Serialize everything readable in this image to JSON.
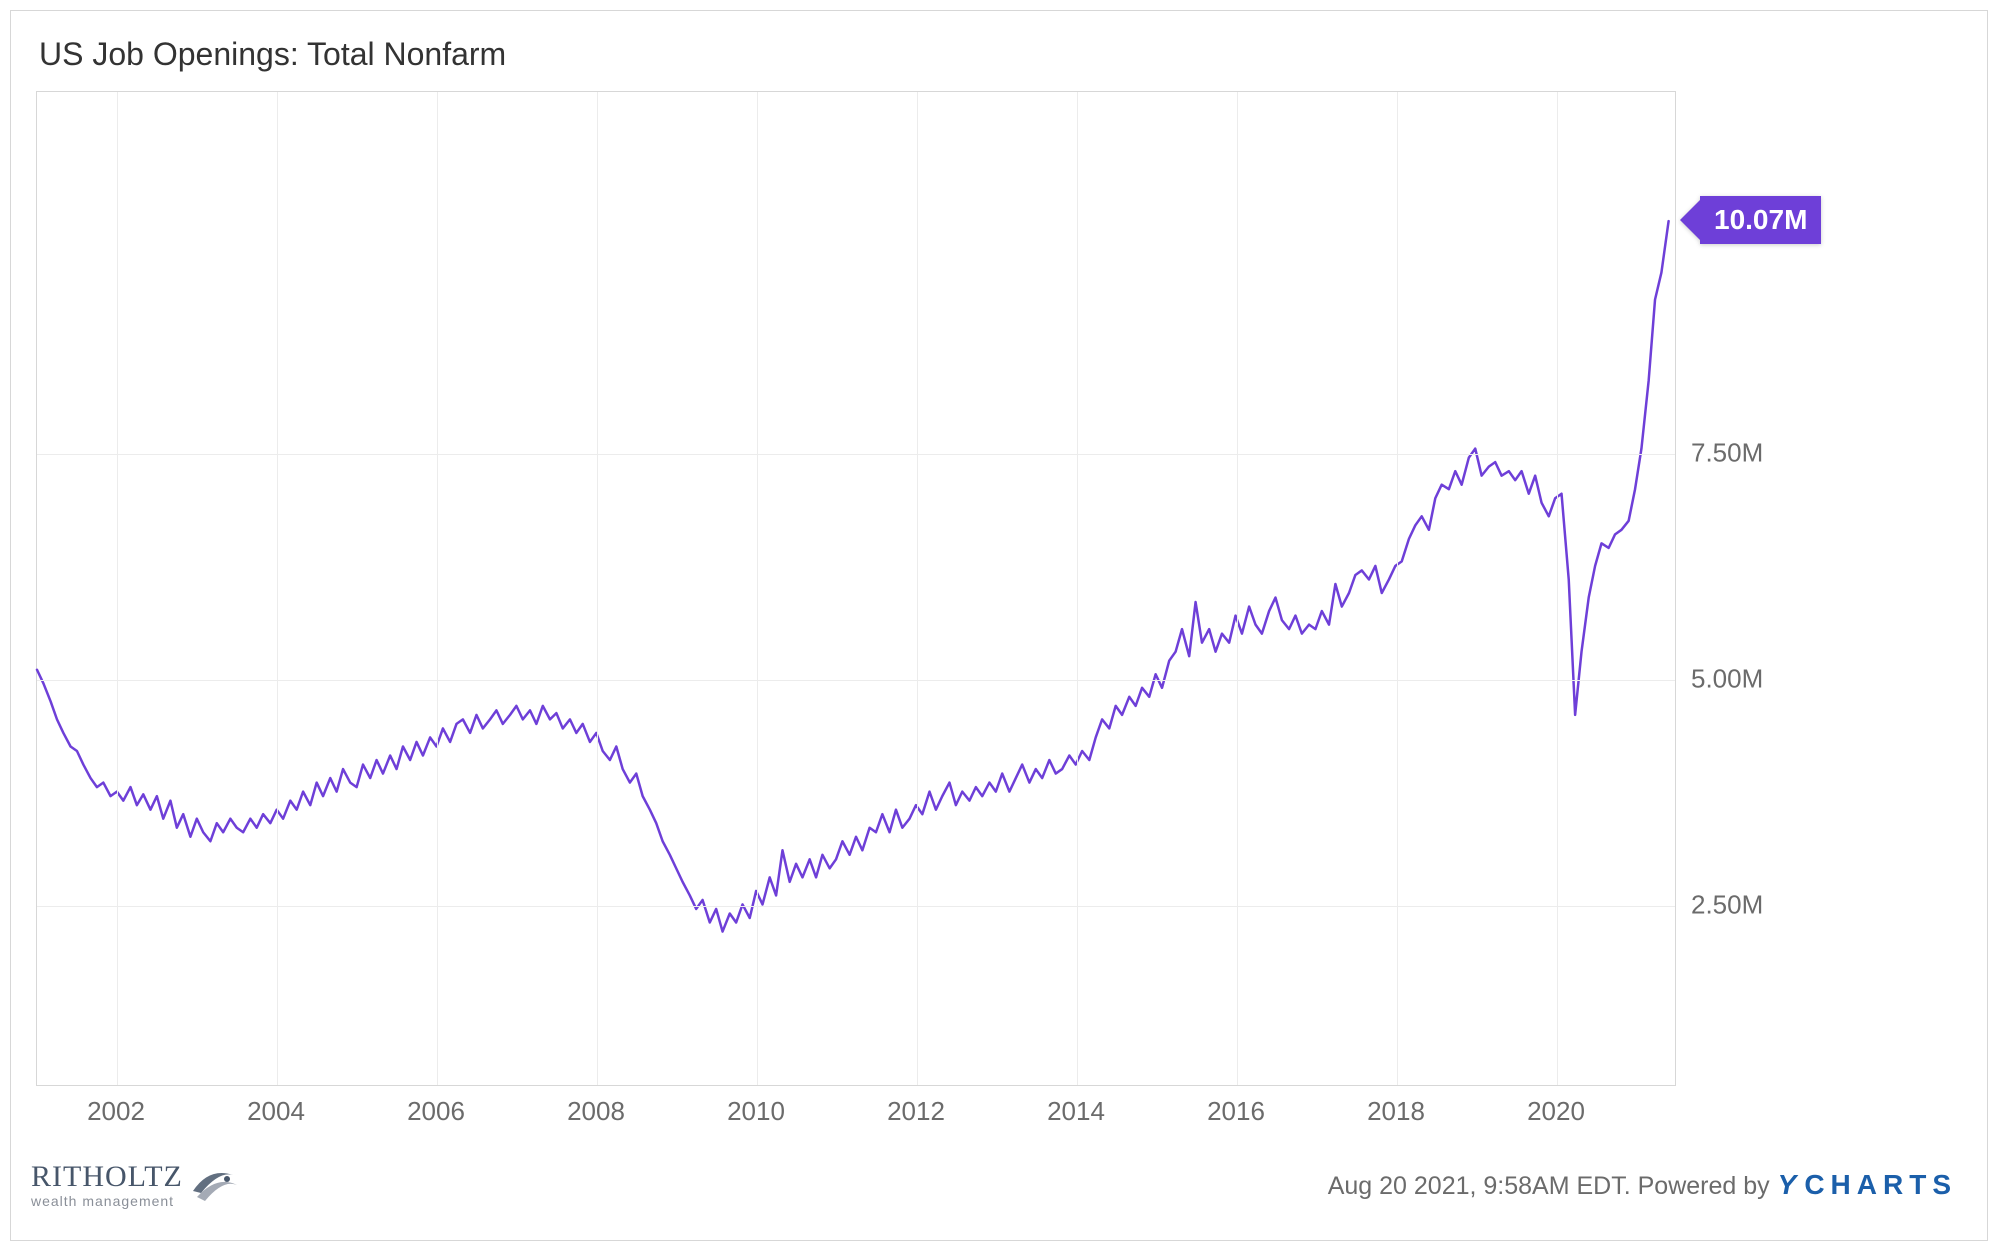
{
  "chart": {
    "type": "line",
    "title": "US Job Openings: Total Nonfarm",
    "title_fontsize": 32,
    "title_color": "#333333",
    "background_color": "#ffffff",
    "plot_border_color": "#d7d7d7",
    "grid_color": "#ececec",
    "line_color": "#6e3fd8",
    "line_width": 2.5,
    "x": {
      "min": 2001.0,
      "max": 2021.5,
      "ticks": [
        2002,
        2004,
        2006,
        2008,
        2010,
        2012,
        2014,
        2016,
        2018,
        2020
      ],
      "tick_labels": [
        "2002",
        "2004",
        "2006",
        "2008",
        "2010",
        "2012",
        "2014",
        "2016",
        "2018",
        "2020"
      ],
      "label_fontsize": 26,
      "label_color": "#6b6b6b"
    },
    "y": {
      "min": 0.5,
      "max": 11.5,
      "ticks": [
        2.5,
        5.0,
        7.5
      ],
      "tick_labels": [
        "2.50M",
        "5.00M",
        "7.50M"
      ],
      "label_fontsize": 26,
      "label_color": "#6b6b6b"
    },
    "callout": {
      "value": 10.07,
      "label": "10.07M",
      "bg_color": "#6e3fd8",
      "text_color": "#ffffff",
      "fontsize": 28
    },
    "series": [
      {
        "x": 2001.0,
        "y": 5.1
      },
      {
        "x": 2001.08,
        "y": 4.95
      },
      {
        "x": 2001.17,
        "y": 4.75
      },
      {
        "x": 2001.25,
        "y": 4.55
      },
      {
        "x": 2001.33,
        "y": 4.4
      },
      {
        "x": 2001.42,
        "y": 4.25
      },
      {
        "x": 2001.5,
        "y": 4.2
      },
      {
        "x": 2001.58,
        "y": 4.05
      },
      {
        "x": 2001.67,
        "y": 3.9
      },
      {
        "x": 2001.75,
        "y": 3.8
      },
      {
        "x": 2001.83,
        "y": 3.85
      },
      {
        "x": 2001.92,
        "y": 3.7
      },
      {
        "x": 2002.0,
        "y": 3.75
      },
      {
        "x": 2002.08,
        "y": 3.65
      },
      {
        "x": 2002.17,
        "y": 3.8
      },
      {
        "x": 2002.25,
        "y": 3.6
      },
      {
        "x": 2002.33,
        "y": 3.72
      },
      {
        "x": 2002.42,
        "y": 3.55
      },
      {
        "x": 2002.5,
        "y": 3.7
      },
      {
        "x": 2002.58,
        "y": 3.45
      },
      {
        "x": 2002.67,
        "y": 3.65
      },
      {
        "x": 2002.75,
        "y": 3.35
      },
      {
        "x": 2002.83,
        "y": 3.5
      },
      {
        "x": 2002.92,
        "y": 3.25
      },
      {
        "x": 2003.0,
        "y": 3.45
      },
      {
        "x": 2003.08,
        "y": 3.3
      },
      {
        "x": 2003.17,
        "y": 3.2
      },
      {
        "x": 2003.25,
        "y": 3.4
      },
      {
        "x": 2003.33,
        "y": 3.3
      },
      {
        "x": 2003.42,
        "y": 3.45
      },
      {
        "x": 2003.5,
        "y": 3.35
      },
      {
        "x": 2003.58,
        "y": 3.3
      },
      {
        "x": 2003.67,
        "y": 3.45
      },
      {
        "x": 2003.75,
        "y": 3.35
      },
      {
        "x": 2003.83,
        "y": 3.5
      },
      {
        "x": 2003.92,
        "y": 3.4
      },
      {
        "x": 2004.0,
        "y": 3.55
      },
      {
        "x": 2004.08,
        "y": 3.45
      },
      {
        "x": 2004.17,
        "y": 3.65
      },
      {
        "x": 2004.25,
        "y": 3.55
      },
      {
        "x": 2004.33,
        "y": 3.75
      },
      {
        "x": 2004.42,
        "y": 3.6
      },
      {
        "x": 2004.5,
        "y": 3.85
      },
      {
        "x": 2004.58,
        "y": 3.7
      },
      {
        "x": 2004.67,
        "y": 3.9
      },
      {
        "x": 2004.75,
        "y": 3.75
      },
      {
        "x": 2004.83,
        "y": 4.0
      },
      {
        "x": 2004.92,
        "y": 3.85
      },
      {
        "x": 2005.0,
        "y": 3.8
      },
      {
        "x": 2005.08,
        "y": 4.05
      },
      {
        "x": 2005.17,
        "y": 3.9
      },
      {
        "x": 2005.25,
        "y": 4.1
      },
      {
        "x": 2005.33,
        "y": 3.95
      },
      {
        "x": 2005.42,
        "y": 4.15
      },
      {
        "x": 2005.5,
        "y": 4.0
      },
      {
        "x": 2005.58,
        "y": 4.25
      },
      {
        "x": 2005.67,
        "y": 4.1
      },
      {
        "x": 2005.75,
        "y": 4.3
      },
      {
        "x": 2005.83,
        "y": 4.15
      },
      {
        "x": 2005.92,
        "y": 4.35
      },
      {
        "x": 2006.0,
        "y": 4.25
      },
      {
        "x": 2006.08,
        "y": 4.45
      },
      {
        "x": 2006.17,
        "y": 4.3
      },
      {
        "x": 2006.25,
        "y": 4.5
      },
      {
        "x": 2006.33,
        "y": 4.55
      },
      {
        "x": 2006.42,
        "y": 4.4
      },
      {
        "x": 2006.5,
        "y": 4.6
      },
      {
        "x": 2006.58,
        "y": 4.45
      },
      {
        "x": 2006.67,
        "y": 4.55
      },
      {
        "x": 2006.75,
        "y": 4.65
      },
      {
        "x": 2006.83,
        "y": 4.5
      },
      {
        "x": 2006.92,
        "y": 4.6
      },
      {
        "x": 2007.0,
        "y": 4.7
      },
      {
        "x": 2007.08,
        "y": 4.55
      },
      {
        "x": 2007.17,
        "y": 4.65
      },
      {
        "x": 2007.25,
        "y": 4.5
      },
      {
        "x": 2007.33,
        "y": 4.7
      },
      {
        "x": 2007.42,
        "y": 4.55
      },
      {
        "x": 2007.5,
        "y": 4.62
      },
      {
        "x": 2007.58,
        "y": 4.45
      },
      {
        "x": 2007.67,
        "y": 4.55
      },
      {
        "x": 2007.75,
        "y": 4.4
      },
      {
        "x": 2007.83,
        "y": 4.5
      },
      {
        "x": 2007.92,
        "y": 4.3
      },
      {
        "x": 2008.0,
        "y": 4.4
      },
      {
        "x": 2008.08,
        "y": 4.2
      },
      {
        "x": 2008.17,
        "y": 4.1
      },
      {
        "x": 2008.25,
        "y": 4.25
      },
      {
        "x": 2008.33,
        "y": 4.0
      },
      {
        "x": 2008.42,
        "y": 3.85
      },
      {
        "x": 2008.5,
        "y": 3.95
      },
      {
        "x": 2008.58,
        "y": 3.7
      },
      {
        "x": 2008.67,
        "y": 3.55
      },
      {
        "x": 2008.75,
        "y": 3.4
      },
      {
        "x": 2008.83,
        "y": 3.2
      },
      {
        "x": 2008.92,
        "y": 3.05
      },
      {
        "x": 2009.0,
        "y": 2.9
      },
      {
        "x": 2009.08,
        "y": 2.75
      },
      {
        "x": 2009.17,
        "y": 2.6
      },
      {
        "x": 2009.25,
        "y": 2.45
      },
      {
        "x": 2009.33,
        "y": 2.55
      },
      {
        "x": 2009.42,
        "y": 2.3
      },
      {
        "x": 2009.5,
        "y": 2.45
      },
      {
        "x": 2009.58,
        "y": 2.2
      },
      {
        "x": 2009.67,
        "y": 2.4
      },
      {
        "x": 2009.75,
        "y": 2.3
      },
      {
        "x": 2009.83,
        "y": 2.5
      },
      {
        "x": 2009.92,
        "y": 2.35
      },
      {
        "x": 2010.0,
        "y": 2.65
      },
      {
        "x": 2010.08,
        "y": 2.5
      },
      {
        "x": 2010.17,
        "y": 2.8
      },
      {
        "x": 2010.25,
        "y": 2.6
      },
      {
        "x": 2010.33,
        "y": 3.1
      },
      {
        "x": 2010.42,
        "y": 2.75
      },
      {
        "x": 2010.5,
        "y": 2.95
      },
      {
        "x": 2010.58,
        "y": 2.8
      },
      {
        "x": 2010.67,
        "y": 3.0
      },
      {
        "x": 2010.75,
        "y": 2.8
      },
      {
        "x": 2010.83,
        "y": 3.05
      },
      {
        "x": 2010.92,
        "y": 2.9
      },
      {
        "x": 2011.0,
        "y": 3.0
      },
      {
        "x": 2011.08,
        "y": 3.2
      },
      {
        "x": 2011.17,
        "y": 3.05
      },
      {
        "x": 2011.25,
        "y": 3.25
      },
      {
        "x": 2011.33,
        "y": 3.1
      },
      {
        "x": 2011.42,
        "y": 3.35
      },
      {
        "x": 2011.5,
        "y": 3.3
      },
      {
        "x": 2011.58,
        "y": 3.5
      },
      {
        "x": 2011.67,
        "y": 3.3
      },
      {
        "x": 2011.75,
        "y": 3.55
      },
      {
        "x": 2011.83,
        "y": 3.35
      },
      {
        "x": 2011.92,
        "y": 3.45
      },
      {
        "x": 2012.0,
        "y": 3.6
      },
      {
        "x": 2012.08,
        "y": 3.5
      },
      {
        "x": 2012.17,
        "y": 3.75
      },
      {
        "x": 2012.25,
        "y": 3.55
      },
      {
        "x": 2012.33,
        "y": 3.7
      },
      {
        "x": 2012.42,
        "y": 3.85
      },
      {
        "x": 2012.5,
        "y": 3.6
      },
      {
        "x": 2012.58,
        "y": 3.75
      },
      {
        "x": 2012.67,
        "y": 3.65
      },
      {
        "x": 2012.75,
        "y": 3.8
      },
      {
        "x": 2012.83,
        "y": 3.7
      },
      {
        "x": 2012.92,
        "y": 3.85
      },
      {
        "x": 2013.0,
        "y": 3.75
      },
      {
        "x": 2013.08,
        "y": 3.95
      },
      {
        "x": 2013.17,
        "y": 3.75
      },
      {
        "x": 2013.25,
        "y": 3.9
      },
      {
        "x": 2013.33,
        "y": 4.05
      },
      {
        "x": 2013.42,
        "y": 3.85
      },
      {
        "x": 2013.5,
        "y": 4.0
      },
      {
        "x": 2013.58,
        "y": 3.9
      },
      {
        "x": 2013.67,
        "y": 4.1
      },
      {
        "x": 2013.75,
        "y": 3.95
      },
      {
        "x": 2013.83,
        "y": 4.0
      },
      {
        "x": 2013.92,
        "y": 4.15
      },
      {
        "x": 2014.0,
        "y": 4.05
      },
      {
        "x": 2014.08,
        "y": 4.2
      },
      {
        "x": 2014.17,
        "y": 4.1
      },
      {
        "x": 2014.25,
        "y": 4.35
      },
      {
        "x": 2014.33,
        "y": 4.55
      },
      {
        "x": 2014.42,
        "y": 4.45
      },
      {
        "x": 2014.5,
        "y": 4.7
      },
      {
        "x": 2014.58,
        "y": 4.6
      },
      {
        "x": 2014.67,
        "y": 4.8
      },
      {
        "x": 2014.75,
        "y": 4.7
      },
      {
        "x": 2014.83,
        "y": 4.9
      },
      {
        "x": 2014.92,
        "y": 4.8
      },
      {
        "x": 2015.0,
        "y": 5.05
      },
      {
        "x": 2015.08,
        "y": 4.9
      },
      {
        "x": 2015.17,
        "y": 5.2
      },
      {
        "x": 2015.25,
        "y": 5.3
      },
      {
        "x": 2015.33,
        "y": 5.55
      },
      {
        "x": 2015.42,
        "y": 5.25
      },
      {
        "x": 2015.5,
        "y": 5.85
      },
      {
        "x": 2015.58,
        "y": 5.4
      },
      {
        "x": 2015.67,
        "y": 5.55
      },
      {
        "x": 2015.75,
        "y": 5.3
      },
      {
        "x": 2015.83,
        "y": 5.5
      },
      {
        "x": 2015.92,
        "y": 5.4
      },
      {
        "x": 2016.0,
        "y": 5.7
      },
      {
        "x": 2016.08,
        "y": 5.5
      },
      {
        "x": 2016.17,
        "y": 5.8
      },
      {
        "x": 2016.25,
        "y": 5.6
      },
      {
        "x": 2016.33,
        "y": 5.5
      },
      {
        "x": 2016.42,
        "y": 5.75
      },
      {
        "x": 2016.5,
        "y": 5.9
      },
      {
        "x": 2016.58,
        "y": 5.65
      },
      {
        "x": 2016.67,
        "y": 5.55
      },
      {
        "x": 2016.75,
        "y": 5.7
      },
      {
        "x": 2016.83,
        "y": 5.5
      },
      {
        "x": 2016.92,
        "y": 5.6
      },
      {
        "x": 2017.0,
        "y": 5.55
      },
      {
        "x": 2017.08,
        "y": 5.75
      },
      {
        "x": 2017.17,
        "y": 5.6
      },
      {
        "x": 2017.25,
        "y": 6.05
      },
      {
        "x": 2017.33,
        "y": 5.8
      },
      {
        "x": 2017.42,
        "y": 5.95
      },
      {
        "x": 2017.5,
        "y": 6.15
      },
      {
        "x": 2017.58,
        "y": 6.2
      },
      {
        "x": 2017.67,
        "y": 6.1
      },
      {
        "x": 2017.75,
        "y": 6.25
      },
      {
        "x": 2017.83,
        "y": 5.95
      },
      {
        "x": 2017.92,
        "y": 6.1
      },
      {
        "x": 2018.0,
        "y": 6.25
      },
      {
        "x": 2018.08,
        "y": 6.3
      },
      {
        "x": 2018.17,
        "y": 6.55
      },
      {
        "x": 2018.25,
        "y": 6.7
      },
      {
        "x": 2018.33,
        "y": 6.8
      },
      {
        "x": 2018.42,
        "y": 6.65
      },
      {
        "x": 2018.5,
        "y": 7.0
      },
      {
        "x": 2018.58,
        "y": 7.15
      },
      {
        "x": 2018.67,
        "y": 7.1
      },
      {
        "x": 2018.75,
        "y": 7.3
      },
      {
        "x": 2018.83,
        "y": 7.15
      },
      {
        "x": 2018.92,
        "y": 7.45
      },
      {
        "x": 2019.0,
        "y": 7.55
      },
      {
        "x": 2019.08,
        "y": 7.25
      },
      {
        "x": 2019.17,
        "y": 7.35
      },
      {
        "x": 2019.25,
        "y": 7.4
      },
      {
        "x": 2019.33,
        "y": 7.25
      },
      {
        "x": 2019.42,
        "y": 7.3
      },
      {
        "x": 2019.5,
        "y": 7.2
      },
      {
        "x": 2019.58,
        "y": 7.3
      },
      {
        "x": 2019.67,
        "y": 7.05
      },
      {
        "x": 2019.75,
        "y": 7.25
      },
      {
        "x": 2019.83,
        "y": 6.95
      },
      {
        "x": 2019.92,
        "y": 6.8
      },
      {
        "x": 2020.0,
        "y": 7.0
      },
      {
        "x": 2020.08,
        "y": 7.05
      },
      {
        "x": 2020.17,
        "y": 6.1
      },
      {
        "x": 2020.25,
        "y": 4.6
      },
      {
        "x": 2020.33,
        "y": 5.3
      },
      {
        "x": 2020.42,
        "y": 5.9
      },
      {
        "x": 2020.5,
        "y": 6.25
      },
      {
        "x": 2020.58,
        "y": 6.5
      },
      {
        "x": 2020.67,
        "y": 6.45
      },
      {
        "x": 2020.75,
        "y": 6.6
      },
      {
        "x": 2020.83,
        "y": 6.65
      },
      {
        "x": 2020.92,
        "y": 6.75
      },
      {
        "x": 2021.0,
        "y": 7.1
      },
      {
        "x": 2021.08,
        "y": 7.55
      },
      {
        "x": 2021.17,
        "y": 8.3
      },
      {
        "x": 2021.25,
        "y": 9.2
      },
      {
        "x": 2021.33,
        "y": 9.5
      },
      {
        "x": 2021.42,
        "y": 10.07
      }
    ]
  },
  "footer": {
    "timestamp": "Aug 20 2021, 9:58AM EDT. Powered by",
    "provider": "CHARTS",
    "provider_prefix": "Y",
    "attribution_logo_name": "RITHOLTZ",
    "attribution_logo_sub": "wealth management"
  }
}
